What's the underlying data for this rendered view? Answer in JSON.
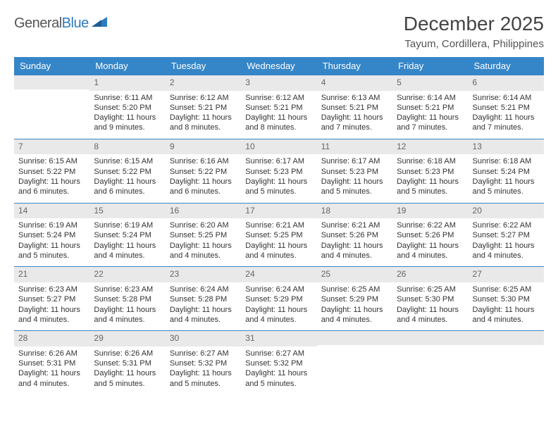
{
  "brand": {
    "name_part1": "General",
    "name_part2": "Blue",
    "triangle_color": "#2b7bbf",
    "text_color_gray": "#555555"
  },
  "title": "December 2025",
  "location": "Tayum, Cordillera, Philippines",
  "colors": {
    "header_bg": "#3586c8",
    "header_text": "#ffffff",
    "daynum_bg": "#e9e9e9",
    "day_border": "#3586c8",
    "body_text": "#333333"
  },
  "weekdays": [
    "Sunday",
    "Monday",
    "Tuesday",
    "Wednesday",
    "Thursday",
    "Friday",
    "Saturday"
  ],
  "weeks": [
    [
      {
        "n": "",
        "lines": [
          "",
          "",
          "",
          ""
        ]
      },
      {
        "n": "1",
        "lines": [
          "Sunrise: 6:11 AM",
          "Sunset: 5:20 PM",
          "Daylight: 11 hours",
          "and 9 minutes."
        ]
      },
      {
        "n": "2",
        "lines": [
          "Sunrise: 6:12 AM",
          "Sunset: 5:21 PM",
          "Daylight: 11 hours",
          "and 8 minutes."
        ]
      },
      {
        "n": "3",
        "lines": [
          "Sunrise: 6:12 AM",
          "Sunset: 5:21 PM",
          "Daylight: 11 hours",
          "and 8 minutes."
        ]
      },
      {
        "n": "4",
        "lines": [
          "Sunrise: 6:13 AM",
          "Sunset: 5:21 PM",
          "Daylight: 11 hours",
          "and 7 minutes."
        ]
      },
      {
        "n": "5",
        "lines": [
          "Sunrise: 6:14 AM",
          "Sunset: 5:21 PM",
          "Daylight: 11 hours",
          "and 7 minutes."
        ]
      },
      {
        "n": "6",
        "lines": [
          "Sunrise: 6:14 AM",
          "Sunset: 5:21 PM",
          "Daylight: 11 hours",
          "and 7 minutes."
        ]
      }
    ],
    [
      {
        "n": "7",
        "lines": [
          "Sunrise: 6:15 AM",
          "Sunset: 5:22 PM",
          "Daylight: 11 hours",
          "and 6 minutes."
        ]
      },
      {
        "n": "8",
        "lines": [
          "Sunrise: 6:15 AM",
          "Sunset: 5:22 PM",
          "Daylight: 11 hours",
          "and 6 minutes."
        ]
      },
      {
        "n": "9",
        "lines": [
          "Sunrise: 6:16 AM",
          "Sunset: 5:22 PM",
          "Daylight: 11 hours",
          "and 6 minutes."
        ]
      },
      {
        "n": "10",
        "lines": [
          "Sunrise: 6:17 AM",
          "Sunset: 5:23 PM",
          "Daylight: 11 hours",
          "and 5 minutes."
        ]
      },
      {
        "n": "11",
        "lines": [
          "Sunrise: 6:17 AM",
          "Sunset: 5:23 PM",
          "Daylight: 11 hours",
          "and 5 minutes."
        ]
      },
      {
        "n": "12",
        "lines": [
          "Sunrise: 6:18 AM",
          "Sunset: 5:23 PM",
          "Daylight: 11 hours",
          "and 5 minutes."
        ]
      },
      {
        "n": "13",
        "lines": [
          "Sunrise: 6:18 AM",
          "Sunset: 5:24 PM",
          "Daylight: 11 hours",
          "and 5 minutes."
        ]
      }
    ],
    [
      {
        "n": "14",
        "lines": [
          "Sunrise: 6:19 AM",
          "Sunset: 5:24 PM",
          "Daylight: 11 hours",
          "and 5 minutes."
        ]
      },
      {
        "n": "15",
        "lines": [
          "Sunrise: 6:19 AM",
          "Sunset: 5:24 PM",
          "Daylight: 11 hours",
          "and 4 minutes."
        ]
      },
      {
        "n": "16",
        "lines": [
          "Sunrise: 6:20 AM",
          "Sunset: 5:25 PM",
          "Daylight: 11 hours",
          "and 4 minutes."
        ]
      },
      {
        "n": "17",
        "lines": [
          "Sunrise: 6:21 AM",
          "Sunset: 5:25 PM",
          "Daylight: 11 hours",
          "and 4 minutes."
        ]
      },
      {
        "n": "18",
        "lines": [
          "Sunrise: 6:21 AM",
          "Sunset: 5:26 PM",
          "Daylight: 11 hours",
          "and 4 minutes."
        ]
      },
      {
        "n": "19",
        "lines": [
          "Sunrise: 6:22 AM",
          "Sunset: 5:26 PM",
          "Daylight: 11 hours",
          "and 4 minutes."
        ]
      },
      {
        "n": "20",
        "lines": [
          "Sunrise: 6:22 AM",
          "Sunset: 5:27 PM",
          "Daylight: 11 hours",
          "and 4 minutes."
        ]
      }
    ],
    [
      {
        "n": "21",
        "lines": [
          "Sunrise: 6:23 AM",
          "Sunset: 5:27 PM",
          "Daylight: 11 hours",
          "and 4 minutes."
        ]
      },
      {
        "n": "22",
        "lines": [
          "Sunrise: 6:23 AM",
          "Sunset: 5:28 PM",
          "Daylight: 11 hours",
          "and 4 minutes."
        ]
      },
      {
        "n": "23",
        "lines": [
          "Sunrise: 6:24 AM",
          "Sunset: 5:28 PM",
          "Daylight: 11 hours",
          "and 4 minutes."
        ]
      },
      {
        "n": "24",
        "lines": [
          "Sunrise: 6:24 AM",
          "Sunset: 5:29 PM",
          "Daylight: 11 hours",
          "and 4 minutes."
        ]
      },
      {
        "n": "25",
        "lines": [
          "Sunrise: 6:25 AM",
          "Sunset: 5:29 PM",
          "Daylight: 11 hours",
          "and 4 minutes."
        ]
      },
      {
        "n": "26",
        "lines": [
          "Sunrise: 6:25 AM",
          "Sunset: 5:30 PM",
          "Daylight: 11 hours",
          "and 4 minutes."
        ]
      },
      {
        "n": "27",
        "lines": [
          "Sunrise: 6:25 AM",
          "Sunset: 5:30 PM",
          "Daylight: 11 hours",
          "and 4 minutes."
        ]
      }
    ],
    [
      {
        "n": "28",
        "lines": [
          "Sunrise: 6:26 AM",
          "Sunset: 5:31 PM",
          "Daylight: 11 hours",
          "and 4 minutes."
        ]
      },
      {
        "n": "29",
        "lines": [
          "Sunrise: 6:26 AM",
          "Sunset: 5:31 PM",
          "Daylight: 11 hours",
          "and 5 minutes."
        ]
      },
      {
        "n": "30",
        "lines": [
          "Sunrise: 6:27 AM",
          "Sunset: 5:32 PM",
          "Daylight: 11 hours",
          "and 5 minutes."
        ]
      },
      {
        "n": "31",
        "lines": [
          "Sunrise: 6:27 AM",
          "Sunset: 5:32 PM",
          "Daylight: 11 hours",
          "and 5 minutes."
        ]
      },
      {
        "n": "",
        "lines": [
          "",
          "",
          "",
          ""
        ]
      },
      {
        "n": "",
        "lines": [
          "",
          "",
          "",
          ""
        ]
      },
      {
        "n": "",
        "lines": [
          "",
          "",
          "",
          ""
        ]
      }
    ]
  ]
}
